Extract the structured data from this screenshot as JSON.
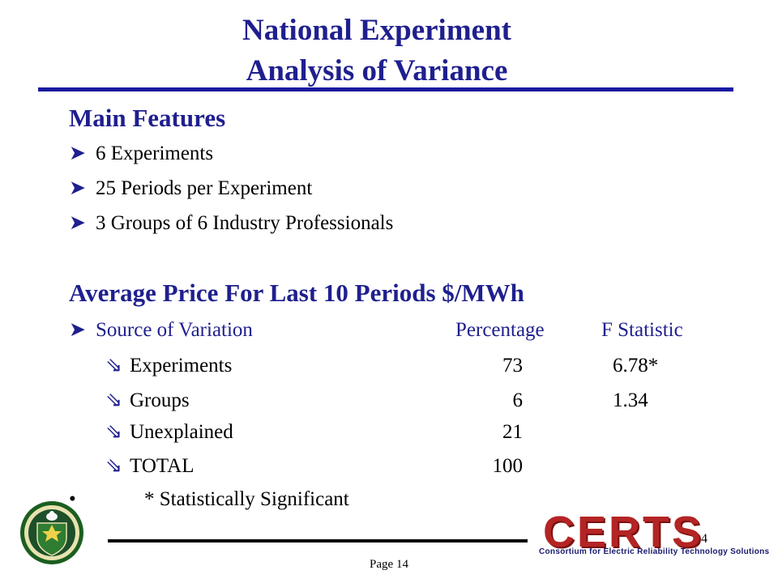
{
  "slide": {
    "title_line1": "National Experiment",
    "title_line2": "Analysis of Variance"
  },
  "main_features": {
    "heading": "Main Features",
    "items": [
      "6  Experiments",
      "25  Periods per Experiment",
      "3 Groups of 6 Industry Professionals"
    ]
  },
  "avg_price": {
    "heading": "Average Price For Last 10 Periods $/MWh",
    "header": {
      "source": "Source of Variation",
      "percentage": "Percentage",
      "f_statistic": "F Statistic"
    },
    "rows": [
      {
        "label": "Experiments",
        "percentage": "73",
        "f_statistic": "6.78*"
      },
      {
        "label": "Groups",
        "percentage": "6",
        "f_statistic": "1.34"
      },
      {
        "label": "Unexplained",
        "percentage": "21",
        "f_statistic": ""
      },
      {
        "label": "TOTAL",
        "percentage": "100",
        "f_statistic": ""
      }
    ],
    "note_bullet": "•",
    "note": "*  Statistically Significant"
  },
  "footer": {
    "slide_number": "14",
    "page_label": "Page 14",
    "logo_text": "CERTS",
    "logo_tagline": "Consortium for Electric Reliability Technology Solutions"
  },
  "colors": {
    "title": "#1f1f8f",
    "rule": "#1a1aa0",
    "logo": "#b42424"
  },
  "icons": {
    "bullet": "arrow-bullet-icon",
    "sub_bullet": "hollow-arrow-bullet-icon",
    "seal": "doe-seal-icon"
  }
}
